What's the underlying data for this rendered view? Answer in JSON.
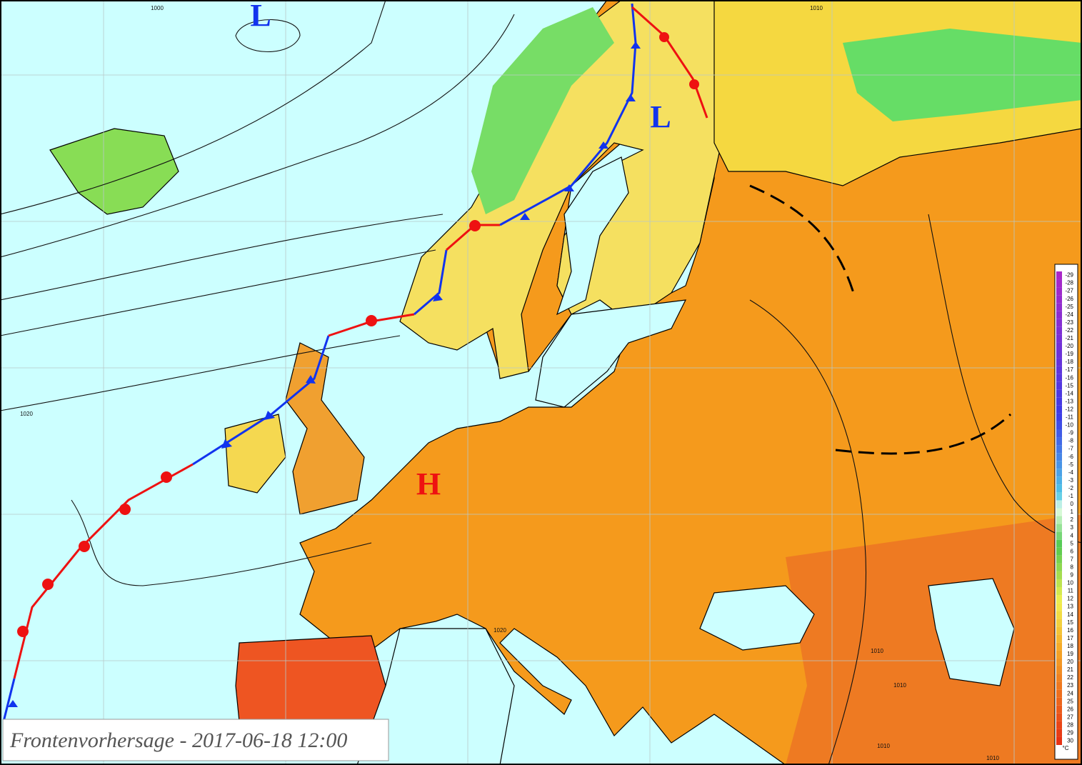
{
  "map": {
    "title": "Frontenvorhersage - 2017-06-18 12:00",
    "pressure_centers": [
      {
        "label": "L"
      },
      {
        "label": "L"
      },
      {
        "label": "H"
      }
    ],
    "isobar_labels": [
      "1000",
      "1010",
      "1020",
      "1020",
      "1010",
      "1010",
      "1010",
      "1010"
    ]
  },
  "colorbar": {
    "values": [
      -29,
      -28,
      -27,
      -26,
      -25,
      -24,
      -23,
      -22,
      -21,
      -20,
      -19,
      -18,
      -17,
      -16,
      -15,
      -14,
      -13,
      -12,
      -11,
      -10,
      -9,
      -8,
      -7,
      -6,
      -5,
      -4,
      -3,
      -2,
      -1,
      0,
      1,
      2,
      3,
      4,
      5,
      6,
      7,
      8,
      9,
      10,
      11,
      12,
      13,
      14,
      15,
      16,
      17,
      18,
      19,
      20,
      21,
      22,
      23,
      24,
      25,
      26,
      27,
      28,
      29,
      30
    ],
    "unit": "°C"
  }
}
